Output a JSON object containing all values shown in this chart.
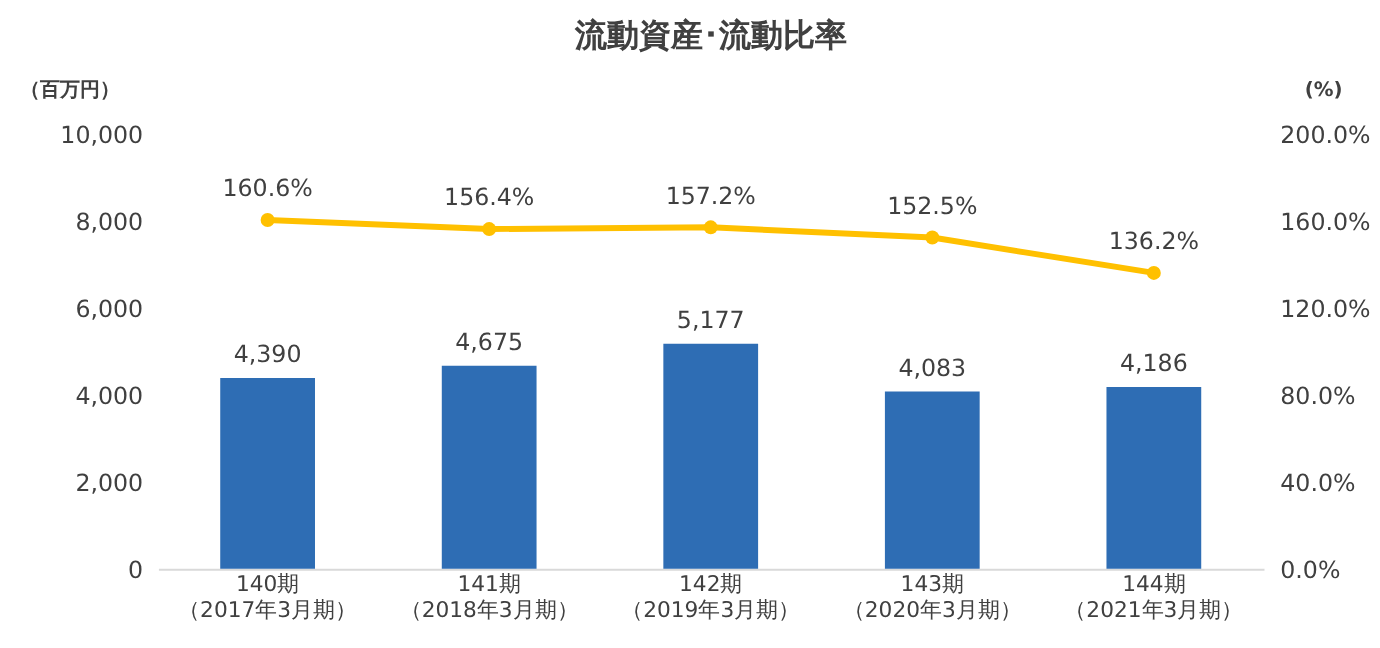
{
  "chart_data": {
    "type": "bar",
    "title": "流動資産･流動比率",
    "ylabel": "（百万円）",
    "y2label": "(%)",
    "categories": [
      "140期（2017年3月期）",
      "141期（2018年3月期）",
      "142期（2019年3月期）",
      "143期（2020年3月期）",
      "144期（2021年3月期）"
    ],
    "series": [
      {
        "color": "#2e6db4",
        "values": [
          4390,
          4675,
          5177,
          4083,
          4186
        ],
        "value_labels": [
          "4,390",
          "4,675",
          "5,177",
          "4,083",
          "4,186"
        ]
      },
      {
        "type": "line",
        "axis": "y2",
        "color": "#ffc000",
        "marker": "circle",
        "values": [
          160.6,
          156.4,
          157.2,
          152.5,
          136.2
        ],
        "value_labels": [
          "160.6%",
          "156.4%",
          "157.2%",
          "152.5%",
          "136.2%"
        ]
      }
    ],
    "ylim": [
      0,
      10000
    ],
    "yticks": [
      {
        "value": 0,
        "label": "0"
      },
      {
        "value": 2000,
        "label": "2,000"
      },
      {
        "value": 4000,
        "label": "4,000"
      },
      {
        "value": 6000,
        "label": "6,000"
      },
      {
        "value": 8000,
        "label": "8,000"
      },
      {
        "value": 10000,
        "label": "10,000"
      }
    ],
    "y2lim": [
      0,
      200
    ],
    "y2ticks": [
      {
        "value": 0,
        "label": "0.0%"
      },
      {
        "value": 40,
        "label": "40.0%"
      },
      {
        "value": 80,
        "label": "80.0%"
      },
      {
        "value": 120,
        "label": "120.0%"
      },
      {
        "value": 160,
        "label": "160.0%"
      },
      {
        "value": 200,
        "label": "200.0%"
      }
    ],
    "grid": false
  }
}
